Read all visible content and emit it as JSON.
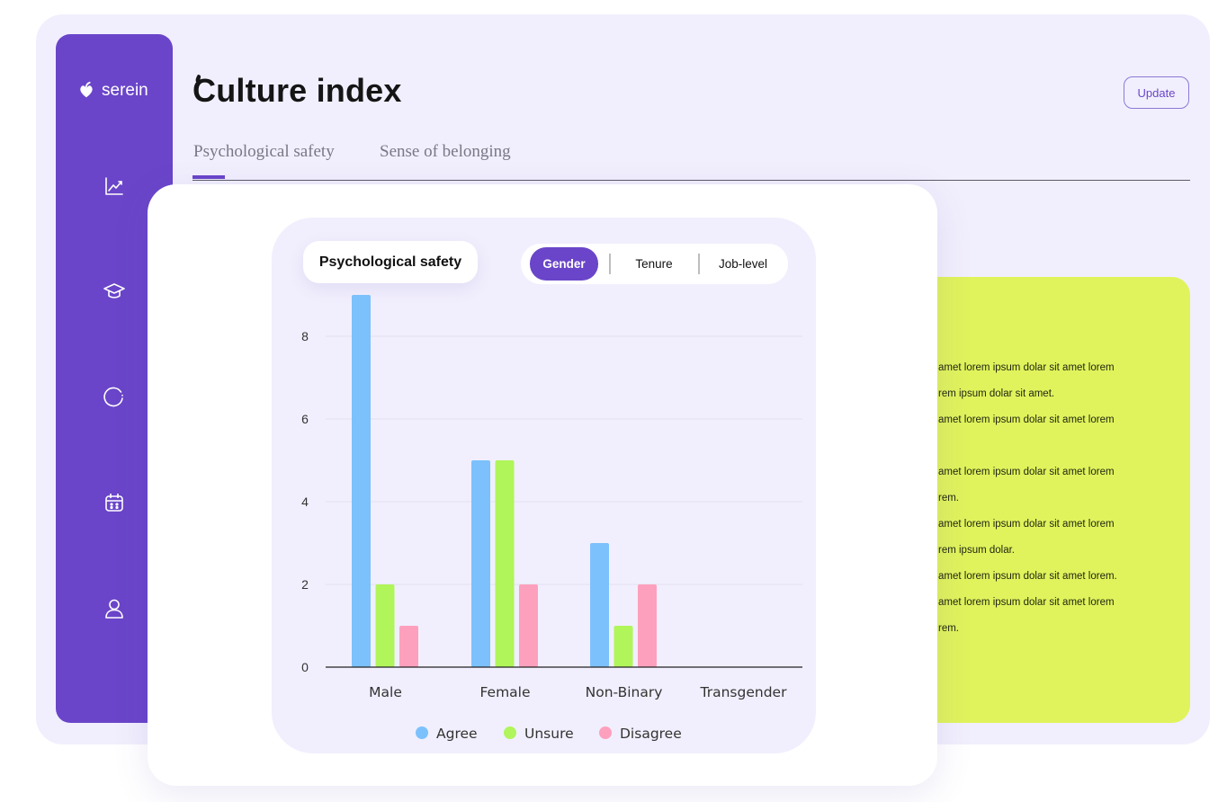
{
  "app": {
    "brand": "serein",
    "title": "Culture index",
    "update_label": "Update"
  },
  "sidebar": {
    "icons": [
      "chart-line-icon",
      "graduation-cap-icon",
      "circle-loading-icon",
      "calendar-icon",
      "user-icon"
    ]
  },
  "tabs": [
    {
      "label": "Psychological safety",
      "active": true
    },
    {
      "label": "Sense of belonging",
      "active": false
    }
  ],
  "yellow_card": {
    "lines": [
      "amet lorem ipsum dolar sit amet lorem",
      "rem ipsum dolar sit amet.",
      "amet lorem ipsum dolar sit amet lorem",
      "amet lorem ipsum dolar sit amet lorem",
      "rem.",
      "amet lorem ipsum dolar sit amet lorem",
      "rem ipsum dolar.",
      "amet lorem ipsum dolar sit amet lorem.",
      "amet lorem ipsum dolar sit amet lorem",
      "rem."
    ]
  },
  "chart_controls": {
    "title": "Psychological safety",
    "segments": [
      "Gender",
      "Tenure",
      "Job-level"
    ],
    "selected": "Gender"
  },
  "colors": {
    "accent": "#6a45c9",
    "agree": "#7cc1fc",
    "unsure": "#b0f55a",
    "disagree": "#fda0bd"
  },
  "chart_data": {
    "type": "bar",
    "title": "Psychological safety",
    "categories": [
      "Male",
      "Female",
      "Non-Binary",
      "Transgender"
    ],
    "series": [
      {
        "name": "Agree",
        "values": [
          9,
          5,
          3,
          0
        ]
      },
      {
        "name": "Unsure",
        "values": [
          2,
          5,
          1,
          0
        ]
      },
      {
        "name": "Disagree",
        "values": [
          1,
          2,
          2,
          0
        ]
      }
    ],
    "yticks": [
      0,
      2,
      4,
      6,
      8
    ],
    "ylim": [
      0,
      9
    ],
    "grid": true,
    "legend": "bottom"
  }
}
